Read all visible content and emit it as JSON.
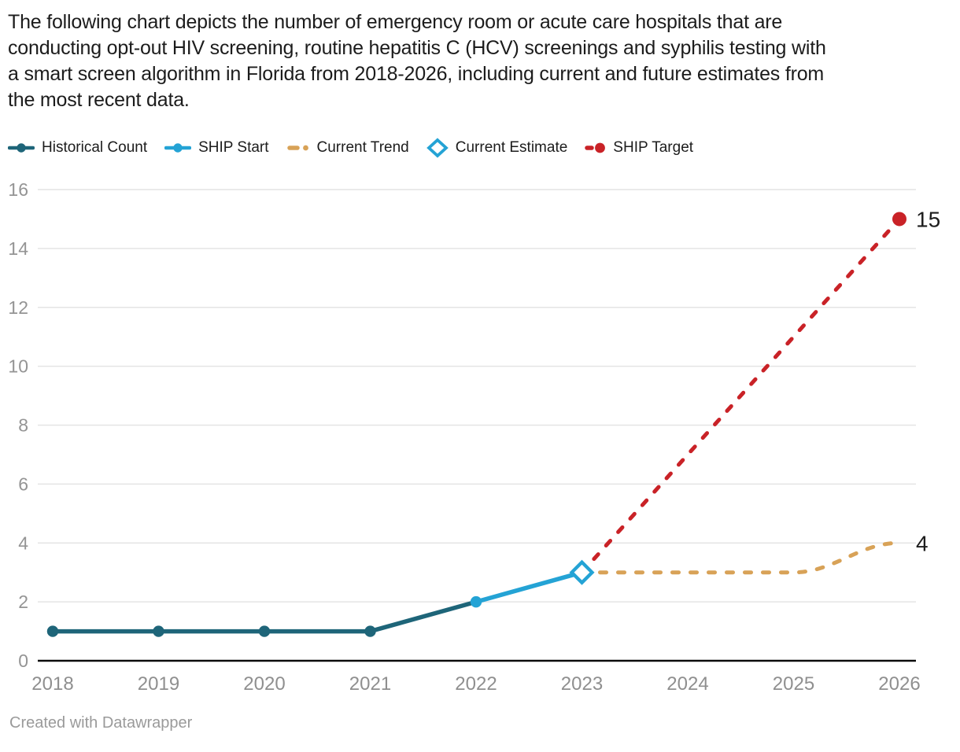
{
  "intro_lines": [
    "The following chart depicts the number of emergency room or acute care hospitals that are",
    "conducting opt-out HIV screening, routine hepatitis C (HCV) screenings and syphilis testing with",
    "a smart screen algorithm in Florida from 2018-2026, including current and future estimates from",
    "the most recent data."
  ],
  "legend": [
    {
      "label": "Historical Count",
      "marker": "line-dot",
      "color": "#1e6579"
    },
    {
      "label": "SHIP Start",
      "marker": "line-dot",
      "color": "#24a3d5"
    },
    {
      "label": "Current Trend",
      "marker": "dashes",
      "color": "#d8a257"
    },
    {
      "label": "Current Estimate",
      "marker": "diamond",
      "color": "#24a3d5"
    },
    {
      "label": "SHIP Target",
      "marker": "dash-dot",
      "color": "#c92227"
    }
  ],
  "chart_data": {
    "type": "line",
    "x": [
      2018,
      2019,
      2020,
      2021,
      2022,
      2023,
      2024,
      2025,
      2026
    ],
    "ylim": [
      0,
      16
    ],
    "yticks": [
      0,
      2,
      4,
      6,
      8,
      10,
      12,
      14,
      16
    ],
    "grid": true,
    "legend_position": "top",
    "axis_color": "#0b0b0b",
    "grid_color": "#e4e4e4",
    "tick_label_color": "#949494",
    "value_label_color": "#1d1d1d",
    "series": [
      {
        "name": "Historical Count",
        "color": "#1e6579",
        "style": "solid",
        "x": [
          2018,
          2019,
          2020,
          2021,
          2022
        ],
        "values": [
          1,
          1,
          1,
          1,
          2
        ],
        "marker_x": [
          2018,
          2019,
          2020,
          2021
        ]
      },
      {
        "name": "SHIP Start",
        "color": "#24a3d5",
        "style": "solid",
        "x": [
          2022,
          2023
        ],
        "values": [
          2,
          3
        ],
        "marker_x": [
          2022
        ]
      },
      {
        "name": "Current Trend",
        "color": "#d8a257",
        "style": "dashed",
        "smooth": true,
        "x": [
          2023,
          2024,
          2025,
          2026
        ],
        "values": [
          3,
          3,
          3,
          4
        ],
        "end_label": "4"
      },
      {
        "name": "Current Estimate",
        "color": "#24a3d5",
        "style": "diamond",
        "x": [
          2023
        ],
        "values": [
          3
        ]
      },
      {
        "name": "SHIP Target",
        "color": "#c92227",
        "style": "dashed",
        "x": [
          2023,
          2026
        ],
        "values": [
          3,
          15
        ],
        "end_label": "15",
        "end_marker": true
      }
    ]
  },
  "footer": {
    "credit": "Created with Datawrapper"
  }
}
